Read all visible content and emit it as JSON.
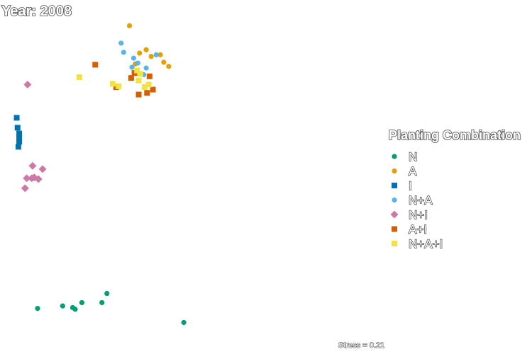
{
  "chart_data": {
    "type": "scatter",
    "title": "Year: 2008",
    "subtitle": "",
    "xlabel": "",
    "ylabel": "",
    "grid": false,
    "axes_visible": false,
    "xlim": [
      -1.7,
      2.8
    ],
    "ylim": [
      -2.3,
      1.8
    ],
    "legend": {
      "title": "Planting Combination",
      "placement": "right"
    },
    "annotation": "Stress = 0.21",
    "series": [
      {
        "name": "N",
        "color": "#009E73",
        "shape": "circle",
        "points": [
          [
            -1.25,
            -1.75
          ],
          [
            -0.95,
            -1.72
          ],
          [
            -0.83,
            -1.74
          ],
          [
            -0.8,
            -1.76
          ],
          [
            -0.72,
            -1.68
          ],
          [
            -0.48,
            -1.68
          ],
          [
            -0.42,
            -1.57
          ],
          [
            0.5,
            -1.92
          ]
        ]
      },
      {
        "name": "A",
        "color": "#E69F00",
        "shape": "circle",
        "points": [
          [
            -0.15,
            1.66
          ],
          [
            -0.03,
            1.33
          ],
          [
            0.05,
            1.37
          ],
          [
            0.11,
            1.29
          ],
          [
            0.22,
            1.31
          ],
          [
            0.26,
            1.22
          ],
          [
            0.32,
            1.17
          ],
          [
            -0.08,
            1.2
          ]
        ]
      },
      {
        "name": "I",
        "color": "#0072B2",
        "shape": "square",
        "points": [
          [
            -1.5,
            0.55
          ],
          [
            -1.49,
            0.43
          ],
          [
            -1.47,
            0.36
          ],
          [
            -1.47,
            0.31
          ],
          [
            -1.47,
            0.26
          ],
          [
            -1.48,
            0.2
          ]
        ]
      },
      {
        "name": "N+A",
        "color": "#56B4E9",
        "shape": "circle",
        "points": [
          [
            -0.25,
            1.45
          ],
          [
            -0.22,
            1.34
          ],
          [
            -0.1,
            1.27
          ],
          [
            -0.05,
            1.21
          ],
          [
            -0.12,
            1.16
          ],
          [
            0.02,
            1.07
          ],
          [
            0.05,
            1.15
          ],
          [
            0.17,
            1.31
          ]
        ]
      },
      {
        "name": "N+I",
        "color": "#CC79A7",
        "shape": "diamond",
        "points": [
          [
            -1.37,
            0.95
          ],
          [
            -1.31,
            -0.03
          ],
          [
            -1.19,
            -0.07
          ],
          [
            -1.38,
            -0.18
          ],
          [
            -1.32,
            -0.18
          ],
          [
            -1.29,
            -0.17
          ],
          [
            -1.24,
            -0.19
          ],
          [
            -1.4,
            -0.3
          ]
        ]
      },
      {
        "name": "A+I",
        "color": "#D55E00",
        "shape": "square",
        "points": [
          [
            -0.56,
            1.19
          ],
          [
            -0.09,
            1.09
          ],
          [
            -0.13,
            1.03
          ],
          [
            0.09,
            1.05
          ],
          [
            0.13,
            0.89
          ],
          [
            0.06,
            0.85
          ],
          [
            -0.31,
            0.92
          ],
          [
            -0.04,
            0.83
          ]
        ]
      },
      {
        "name": "N+A+I",
        "color": "#F0E442",
        "shape": "square",
        "points": [
          [
            -0.75,
            1.04
          ],
          [
            -0.35,
            0.96
          ],
          [
            -0.28,
            0.93
          ],
          [
            -0.06,
            1.12
          ],
          [
            -0.02,
            1.08
          ],
          [
            0.08,
            0.95
          ],
          [
            0.03,
            0.92
          ],
          [
            -0.04,
            1.0
          ]
        ]
      }
    ]
  }
}
